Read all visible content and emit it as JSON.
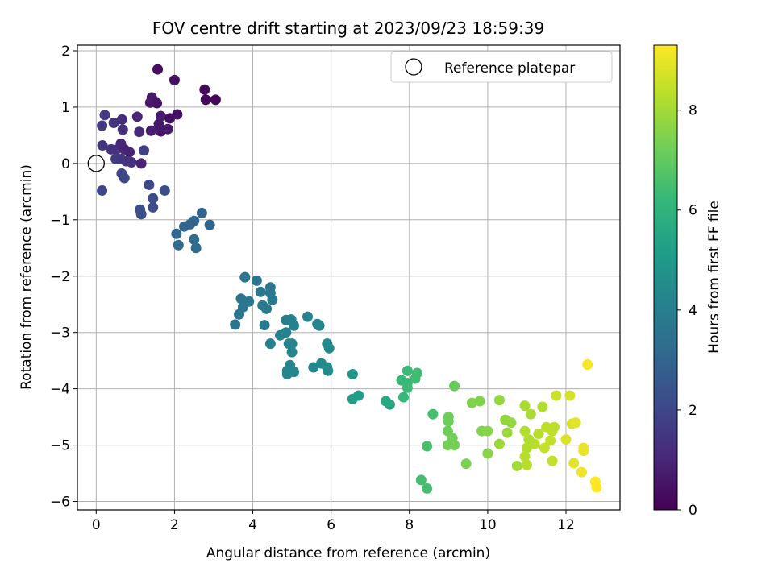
{
  "chart_data": {
    "type": "scatter",
    "title": "FOV centre drift starting at 2023/09/23 18:59:39",
    "xlabel": "Angular distance from reference (arcmin)",
    "ylabel": "Rotation from reference (arcmin)",
    "xlim": [
      -0.48,
      13.38
    ],
    "ylim": [
      -6.15,
      2.1
    ],
    "xticks": [
      "0",
      "2",
      "4",
      "6",
      "8",
      "10",
      "12"
    ],
    "xtick_values": [
      0,
      2,
      4,
      6,
      8,
      10,
      12
    ],
    "yticks": [
      "−6",
      "−5",
      "−4",
      "−3",
      "−2",
      "−1",
      "0",
      "1",
      "2"
    ],
    "ytick_values": [
      -6,
      -5,
      -4,
      -3,
      -2,
      -1,
      0,
      1,
      2
    ],
    "grid": true,
    "legend": {
      "placement": "top-right",
      "entries": [
        "Reference platepar"
      ]
    },
    "reference_point": {
      "x": 0,
      "y": 0
    },
    "colorbar": {
      "label": "Hours from first FF file",
      "ticks": [
        "0",
        "2",
        "4",
        "6",
        "8"
      ],
      "tick_values": [
        0,
        2,
        4,
        6,
        8
      ],
      "range": [
        0,
        9.3
      ],
      "colormap": [
        "#440154",
        "#482878",
        "#3e4989",
        "#31688e",
        "#26828e",
        "#1f9e89",
        "#35b779",
        "#6ece58",
        "#b5de2b",
        "#fde725"
      ]
    },
    "points": [
      {
        "x": 1.57,
        "y": 1.67,
        "h": 0.35
      },
      {
        "x": 2.0,
        "y": 1.48,
        "h": 0.4
      },
      {
        "x": 2.77,
        "y": 1.31,
        "h": 0.2
      },
      {
        "x": 2.8,
        "y": 1.13,
        "h": 0.2
      },
      {
        "x": 3.05,
        "y": 1.13,
        "h": 0.2
      },
      {
        "x": 1.38,
        "y": 1.08,
        "h": 0.6
      },
      {
        "x": 1.42,
        "y": 1.17,
        "h": 0.7
      },
      {
        "x": 1.55,
        "y": 1.07,
        "h": 0.5
      },
      {
        "x": 1.65,
        "y": 0.84,
        "h": 0.7
      },
      {
        "x": 1.88,
        "y": 0.8,
        "h": 0.4
      },
      {
        "x": 2.07,
        "y": 0.87,
        "h": 0.4
      },
      {
        "x": 1.6,
        "y": 0.7,
        "h": 0.6
      },
      {
        "x": 1.65,
        "y": 0.57,
        "h": 0.6
      },
      {
        "x": 1.83,
        "y": 0.61,
        "h": 0.6
      },
      {
        "x": 1.4,
        "y": 0.58,
        "h": 0.8
      },
      {
        "x": 1.05,
        "y": 0.83,
        "h": 1.0
      },
      {
        "x": 1.1,
        "y": 0.56,
        "h": 1.1
      },
      {
        "x": 0.66,
        "y": 0.78,
        "h": 1.2
      },
      {
        "x": 0.68,
        "y": 0.6,
        "h": 1.3
      },
      {
        "x": 0.45,
        "y": 0.72,
        "h": 1.4
      },
      {
        "x": 0.22,
        "y": 0.86,
        "h": 1.6
      },
      {
        "x": 0.15,
        "y": 0.67,
        "h": 1.6
      },
      {
        "x": 0.16,
        "y": 0.32,
        "h": 1.5
      },
      {
        "x": 0.38,
        "y": 0.25,
        "h": 1.4
      },
      {
        "x": 0.5,
        "y": 0.24,
        "h": 1.3
      },
      {
        "x": 0.63,
        "y": 0.35,
        "h": 1.0
      },
      {
        "x": 0.72,
        "y": 0.25,
        "h": 0.9
      },
      {
        "x": 0.85,
        "y": 0.2,
        "h": 0.9
      },
      {
        "x": 0.5,
        "y": 0.08,
        "h": 1.7
      },
      {
        "x": 0.62,
        "y": 0.08,
        "h": 1.5
      },
      {
        "x": 0.76,
        "y": 0.04,
        "h": 1.4
      },
      {
        "x": 0.9,
        "y": 0.02,
        "h": 1.3
      },
      {
        "x": 1.15,
        "y": 0.0,
        "h": 0.9
      },
      {
        "x": 1.22,
        "y": 0.23,
        "h": 1.8
      },
      {
        "x": 1.35,
        "y": -0.38,
        "h": 2.0
      },
      {
        "x": 0.65,
        "y": -0.18,
        "h": 2.0
      },
      {
        "x": 0.72,
        "y": -0.26,
        "h": 2.0
      },
      {
        "x": 0.15,
        "y": -0.48,
        "h": 2.0
      },
      {
        "x": 1.45,
        "y": -0.62,
        "h": 2.2
      },
      {
        "x": 1.75,
        "y": -0.48,
        "h": 2.2
      },
      {
        "x": 1.45,
        "y": -0.78,
        "h": 2.2
      },
      {
        "x": 1.12,
        "y": -0.82,
        "h": 2.3
      },
      {
        "x": 1.15,
        "y": -0.9,
        "h": 2.3
      },
      {
        "x": 2.7,
        "y": -0.88,
        "h": 3.0
      },
      {
        "x": 2.5,
        "y": -1.02,
        "h": 3.0
      },
      {
        "x": 2.4,
        "y": -1.08,
        "h": 3.0
      },
      {
        "x": 2.25,
        "y": -1.12,
        "h": 3.0
      },
      {
        "x": 2.9,
        "y": -1.09,
        "h": 3.0
      },
      {
        "x": 2.05,
        "y": -1.25,
        "h": 3.1
      },
      {
        "x": 2.1,
        "y": -1.45,
        "h": 3.1
      },
      {
        "x": 2.5,
        "y": -1.35,
        "h": 3.2
      },
      {
        "x": 2.55,
        "y": -1.5,
        "h": 3.3
      },
      {
        "x": 3.8,
        "y": -2.02,
        "h": 3.6
      },
      {
        "x": 4.1,
        "y": -2.08,
        "h": 3.6
      },
      {
        "x": 4.2,
        "y": -2.28,
        "h": 3.7
      },
      {
        "x": 4.45,
        "y": -2.2,
        "h": 3.7
      },
      {
        "x": 4.45,
        "y": -2.3,
        "h": 3.7
      },
      {
        "x": 3.7,
        "y": -2.4,
        "h": 3.6
      },
      {
        "x": 3.9,
        "y": -2.45,
        "h": 3.6
      },
      {
        "x": 3.75,
        "y": -2.55,
        "h": 3.6
      },
      {
        "x": 3.65,
        "y": -2.68,
        "h": 3.6
      },
      {
        "x": 3.55,
        "y": -2.86,
        "h": 3.6
      },
      {
        "x": 4.5,
        "y": -2.42,
        "h": 3.8
      },
      {
        "x": 4.25,
        "y": -2.52,
        "h": 3.8
      },
      {
        "x": 4.35,
        "y": -2.58,
        "h": 3.8
      },
      {
        "x": 4.3,
        "y": -2.87,
        "h": 3.8
      },
      {
        "x": 4.85,
        "y": -2.78,
        "h": 4.0
      },
      {
        "x": 4.98,
        "y": -2.77,
        "h": 4.0
      },
      {
        "x": 5.05,
        "y": -2.88,
        "h": 4.1
      },
      {
        "x": 5.4,
        "y": -2.72,
        "h": 4.2
      },
      {
        "x": 5.65,
        "y": -2.85,
        "h": 4.2
      },
      {
        "x": 5.7,
        "y": -2.88,
        "h": 4.3
      },
      {
        "x": 4.7,
        "y": -3.05,
        "h": 4.1
      },
      {
        "x": 4.85,
        "y": -3.0,
        "h": 4.1
      },
      {
        "x": 4.45,
        "y": -3.2,
        "h": 4.1
      },
      {
        "x": 4.92,
        "y": -3.2,
        "h": 4.2
      },
      {
        "x": 5.0,
        "y": -3.2,
        "h": 4.2
      },
      {
        "x": 5.0,
        "y": -3.35,
        "h": 4.2
      },
      {
        "x": 4.95,
        "y": -3.58,
        "h": 4.2
      },
      {
        "x": 4.88,
        "y": -3.68,
        "h": 4.2
      },
      {
        "x": 4.88,
        "y": -3.74,
        "h": 4.2
      },
      {
        "x": 5.05,
        "y": -3.7,
        "h": 4.3
      },
      {
        "x": 5.9,
        "y": -3.2,
        "h": 4.4
      },
      {
        "x": 5.95,
        "y": -3.28,
        "h": 4.4
      },
      {
        "x": 5.55,
        "y": -3.62,
        "h": 4.4
      },
      {
        "x": 5.75,
        "y": -3.55,
        "h": 4.4
      },
      {
        "x": 5.9,
        "y": -3.62,
        "h": 4.5
      },
      {
        "x": 5.92,
        "y": -3.68,
        "h": 4.5
      },
      {
        "x": 6.55,
        "y": -3.74,
        "h": 4.9
      },
      {
        "x": 6.55,
        "y": -4.18,
        "h": 5.2
      },
      {
        "x": 6.7,
        "y": -4.12,
        "h": 5.2
      },
      {
        "x": 7.4,
        "y": -4.22,
        "h": 5.6
      },
      {
        "x": 7.5,
        "y": -4.28,
        "h": 5.6
      },
      {
        "x": 7.8,
        "y": -3.85,
        "h": 6.2
      },
      {
        "x": 7.95,
        "y": -3.9,
        "h": 6.2
      },
      {
        "x": 7.95,
        "y": -3.68,
        "h": 6.3
      },
      {
        "x": 8.2,
        "y": -3.72,
        "h": 6.4
      },
      {
        "x": 8.15,
        "y": -3.82,
        "h": 6.4
      },
      {
        "x": 7.95,
        "y": -3.98,
        "h": 6.3
      },
      {
        "x": 7.85,
        "y": -4.15,
        "h": 6.2
      },
      {
        "x": 8.6,
        "y": -4.45,
        "h": 6.5
      },
      {
        "x": 8.45,
        "y": -5.02,
        "h": 6.6
      },
      {
        "x": 8.3,
        "y": -5.62,
        "h": 6.5
      },
      {
        "x": 8.45,
        "y": -5.77,
        "h": 6.5
      },
      {
        "x": 9.15,
        "y": -3.95,
        "h": 7.1
      },
      {
        "x": 9.0,
        "y": -4.5,
        "h": 7.2
      },
      {
        "x": 9.0,
        "y": -4.58,
        "h": 7.2
      },
      {
        "x": 8.98,
        "y": -4.75,
        "h": 7.2
      },
      {
        "x": 9.1,
        "y": -4.88,
        "h": 7.3
      },
      {
        "x": 8.98,
        "y": -5.0,
        "h": 7.3
      },
      {
        "x": 9.15,
        "y": -5.0,
        "h": 7.3
      },
      {
        "x": 9.45,
        "y": -5.33,
        "h": 7.4
      },
      {
        "x": 9.6,
        "y": -4.25,
        "h": 7.5
      },
      {
        "x": 9.8,
        "y": -4.22,
        "h": 7.5
      },
      {
        "x": 9.85,
        "y": -4.75,
        "h": 7.5
      },
      {
        "x": 10.0,
        "y": -4.75,
        "h": 7.6
      },
      {
        "x": 10.0,
        "y": -5.15,
        "h": 7.6
      },
      {
        "x": 10.3,
        "y": -4.2,
        "h": 7.8
      },
      {
        "x": 10.45,
        "y": -4.55,
        "h": 7.8
      },
      {
        "x": 10.6,
        "y": -4.6,
        "h": 7.8
      },
      {
        "x": 10.5,
        "y": -4.78,
        "h": 7.9
      },
      {
        "x": 10.3,
        "y": -4.98,
        "h": 7.9
      },
      {
        "x": 10.75,
        "y": -5.37,
        "h": 8.0
      },
      {
        "x": 10.95,
        "y": -4.3,
        "h": 8.1
      },
      {
        "x": 11.1,
        "y": -4.45,
        "h": 8.1
      },
      {
        "x": 11.4,
        "y": -4.32,
        "h": 8.2
      },
      {
        "x": 10.95,
        "y": -4.75,
        "h": 8.2
      },
      {
        "x": 11.05,
        "y": -4.9,
        "h": 8.2
      },
      {
        "x": 11.0,
        "y": -5.05,
        "h": 8.2
      },
      {
        "x": 11.2,
        "y": -4.98,
        "h": 8.3
      },
      {
        "x": 11.3,
        "y": -4.8,
        "h": 8.3
      },
      {
        "x": 10.95,
        "y": -5.2,
        "h": 8.3
      },
      {
        "x": 11.0,
        "y": -5.35,
        "h": 8.3
      },
      {
        "x": 11.5,
        "y": -4.68,
        "h": 8.4
      },
      {
        "x": 11.7,
        "y": -4.68,
        "h": 8.4
      },
      {
        "x": 11.65,
        "y": -4.75,
        "h": 8.4
      },
      {
        "x": 11.45,
        "y": -5.05,
        "h": 8.5
      },
      {
        "x": 11.6,
        "y": -4.92,
        "h": 8.5
      },
      {
        "x": 11.65,
        "y": -5.28,
        "h": 8.5
      },
      {
        "x": 11.75,
        "y": -4.12,
        "h": 8.6
      },
      {
        "x": 12.1,
        "y": -4.12,
        "h": 8.7
      },
      {
        "x": 12.0,
        "y": -4.9,
        "h": 8.8
      },
      {
        "x": 12.15,
        "y": -4.62,
        "h": 8.8
      },
      {
        "x": 12.25,
        "y": -4.6,
        "h": 8.9
      },
      {
        "x": 12.2,
        "y": -5.32,
        "h": 8.9
      },
      {
        "x": 12.45,
        "y": -5.05,
        "h": 9.0
      },
      {
        "x": 12.45,
        "y": -5.1,
        "h": 9.0
      },
      {
        "x": 12.4,
        "y": -5.48,
        "h": 9.1
      },
      {
        "x": 12.55,
        "y": -3.57,
        "h": 9.2
      },
      {
        "x": 12.75,
        "y": -5.65,
        "h": 9.3
      },
      {
        "x": 12.78,
        "y": -5.75,
        "h": 9.3
      }
    ]
  }
}
